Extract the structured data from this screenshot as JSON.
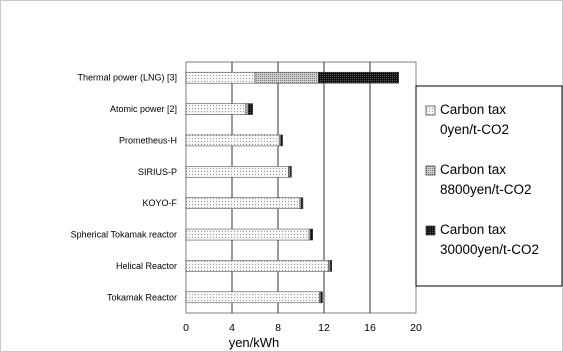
{
  "chart_data": {
    "type": "bar",
    "orientation": "horizontal",
    "stacked": true,
    "categories": [
      "Thermal power (LNG) [3]",
      "Atomic power [2]",
      "Prometheus-H",
      "SIRIUS-P",
      "KOYO-F",
      "Spherical Tokamak reactor",
      "Helical Reactor",
      "Tokamak Reactor"
    ],
    "series": [
      {
        "name": "Carbon tax 0yen/t-CO2",
        "color": "#eeeeee",
        "pattern": "dots-fine",
        "values": [
          6.0,
          5.2,
          8.1,
          8.9,
          9.9,
          10.7,
          12.4,
          11.6
        ]
      },
      {
        "name": "Carbon tax 8800yen/t-CO2",
        "color": "#bbbbbb",
        "pattern": "dots-medium",
        "values": [
          5.5,
          0.2,
          0.15,
          0.12,
          0.12,
          0.12,
          0.12,
          0.12
        ]
      },
      {
        "name": "Carbon tax 30000yen/t-CO2",
        "color": "#111111",
        "pattern": "dots-dense",
        "values": [
          7.0,
          0.4,
          0.15,
          0.15,
          0.15,
          0.2,
          0.15,
          0.15
        ]
      }
    ],
    "legend_lines": [
      [
        "Carbon tax",
        "0yen/t-CO2"
      ],
      [
        "Carbon tax",
        "8800yen/t-CO2"
      ],
      [
        "Carbon tax",
        "30000yen/t-CO2"
      ]
    ],
    "xlim": [
      0,
      20
    ],
    "xticks": [
      "0",
      "4",
      "8",
      "12",
      "16",
      "20"
    ],
    "xlabel": "yen/kWh",
    "grid": "vertical-major",
    "legend_position": "right"
  }
}
